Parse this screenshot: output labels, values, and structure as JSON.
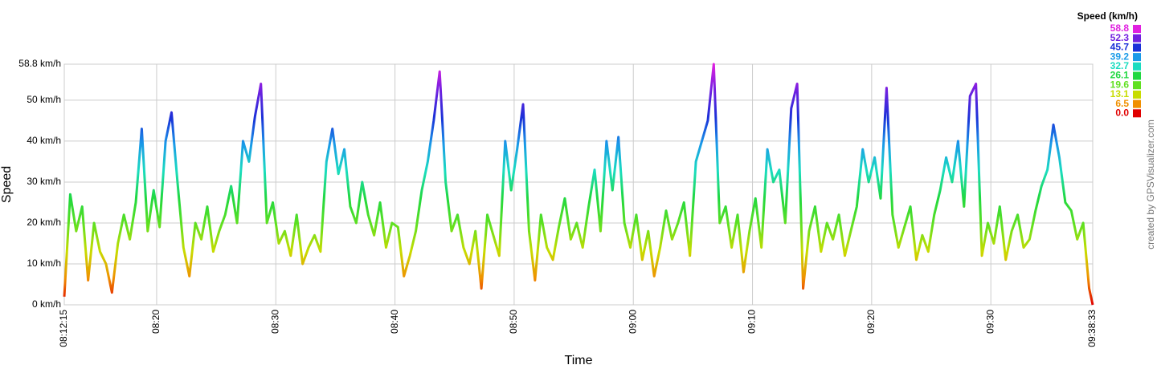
{
  "chart_data": {
    "type": "line",
    "x_label": "Time",
    "y_label": "Speed",
    "credit": "created by GPSVisualizer.com",
    "xlim": [
      "08:12:15",
      "09:38:33"
    ],
    "xticks": [
      "08:12:15",
      "08:20",
      "08:30",
      "08:40",
      "08:50",
      "09:00",
      "09:10",
      "09:20",
      "09:30",
      "09:38:33"
    ],
    "ylim": [
      0,
      58.8
    ],
    "yticks": [
      {
        "value": 0,
        "label": "0 km/h"
      },
      {
        "value": 10,
        "label": "10 km/h"
      },
      {
        "value": 20,
        "label": "20 km/h"
      },
      {
        "value": 30,
        "label": "30 km/h"
      },
      {
        "value": 40,
        "label": "40 km/h"
      },
      {
        "value": 50,
        "label": "50 km/h"
      },
      {
        "value": 58.8,
        "label": "58.8 km/h"
      }
    ],
    "grid": true,
    "color_scale": {
      "title": "Speed (km/h)",
      "stops": [
        {
          "value": 58.8,
          "color": "#e020e0"
        },
        {
          "value": 52.3,
          "color": "#7020e0"
        },
        {
          "value": 45.7,
          "color": "#1a30d8"
        },
        {
          "value": 39.2,
          "color": "#1a9ae8"
        },
        {
          "value": 32.7,
          "color": "#1adcc0"
        },
        {
          "value": 26.1,
          "color": "#20d840"
        },
        {
          "value": 19.6,
          "color": "#60e020"
        },
        {
          "value": 13.1,
          "color": "#c8dc00"
        },
        {
          "value": 6.5,
          "color": "#f09000"
        },
        {
          "value": 0,
          "label": "0.0",
          "color": "#e00000"
        }
      ]
    },
    "x": [
      "08:12:15",
      "08:12:45",
      "08:13:15",
      "08:13:45",
      "08:14:15",
      "08:14:45",
      "08:15:15",
      "08:15:45",
      "08:16:15",
      "08:16:45",
      "08:17:15",
      "08:17:45",
      "08:18:15",
      "08:18:45",
      "08:19:15",
      "08:19:45",
      "08:20:15",
      "08:20:45",
      "08:21:15",
      "08:21:45",
      "08:22:15",
      "08:22:45",
      "08:23:15",
      "08:23:45",
      "08:24:15",
      "08:24:45",
      "08:25:15",
      "08:25:45",
      "08:26:15",
      "08:26:45",
      "08:27:15",
      "08:27:45",
      "08:28:15",
      "08:28:45",
      "08:29:15",
      "08:29:45",
      "08:30:15",
      "08:30:45",
      "08:31:15",
      "08:31:45",
      "08:32:15",
      "08:32:45",
      "08:33:15",
      "08:33:45",
      "08:34:15",
      "08:34:45",
      "08:35:15",
      "08:35:45",
      "08:36:15",
      "08:36:45",
      "08:37:15",
      "08:37:45",
      "08:38:15",
      "08:38:45",
      "08:39:15",
      "08:39:45",
      "08:40:15",
      "08:40:45",
      "08:41:15",
      "08:41:45",
      "08:42:15",
      "08:42:45",
      "08:43:15",
      "08:43:45",
      "08:44:15",
      "08:44:45",
      "08:45:15",
      "08:45:45",
      "08:46:15",
      "08:46:45",
      "08:47:15",
      "08:47:45",
      "08:48:15",
      "08:48:45",
      "08:49:15",
      "08:49:45",
      "08:50:15",
      "08:50:45",
      "08:51:15",
      "08:51:45",
      "08:52:15",
      "08:52:45",
      "08:53:15",
      "08:53:45",
      "08:54:15",
      "08:54:45",
      "08:55:15",
      "08:55:45",
      "08:56:15",
      "08:56:45",
      "08:57:15",
      "08:57:45",
      "08:58:15",
      "08:58:45",
      "08:59:15",
      "08:59:45",
      "09:00:15",
      "09:00:45",
      "09:01:15",
      "09:01:45",
      "09:02:15",
      "09:02:45",
      "09:03:15",
      "09:03:45",
      "09:04:15",
      "09:04:45",
      "09:05:15",
      "09:05:45",
      "09:06:15",
      "09:06:45",
      "09:07:15",
      "09:07:45",
      "09:08:15",
      "09:08:45",
      "09:09:15",
      "09:09:45",
      "09:10:15",
      "09:10:45",
      "09:11:15",
      "09:11:45",
      "09:12:15",
      "09:12:45",
      "09:13:15",
      "09:13:45",
      "09:14:15",
      "09:14:45",
      "09:15:15",
      "09:15:45",
      "09:16:15",
      "09:16:45",
      "09:17:15",
      "09:17:45",
      "09:18:15",
      "09:18:45",
      "09:19:15",
      "09:19:45",
      "09:20:15",
      "09:20:45",
      "09:21:15",
      "09:21:45",
      "09:22:15",
      "09:22:45",
      "09:23:15",
      "09:23:45",
      "09:24:15",
      "09:24:45",
      "09:25:15",
      "09:25:45",
      "09:26:15",
      "09:26:45",
      "09:27:15",
      "09:27:45",
      "09:28:15",
      "09:28:45",
      "09:29:15",
      "09:29:45",
      "09:30:15",
      "09:30:45",
      "09:31:15",
      "09:31:45",
      "09:32:15",
      "09:32:45",
      "09:33:15",
      "09:33:45",
      "09:34:15",
      "09:34:45",
      "09:35:15",
      "09:35:45",
      "09:36:15",
      "09:36:45",
      "09:37:15",
      "09:37:45",
      "09:38:15",
      "09:38:33"
    ],
    "values": [
      2,
      27,
      18,
      24,
      6,
      20,
      13,
      10,
      3,
      15,
      22,
      16,
      25,
      43,
      18,
      28,
      19,
      40,
      47,
      30,
      14,
      7,
      20,
      16,
      24,
      13,
      18,
      22,
      29,
      20,
      40,
      35,
      46,
      54,
      20,
      25,
      15,
      18,
      12,
      22,
      10,
      14,
      17,
      13,
      35,
      43,
      32,
      38,
      24,
      20,
      30,
      22,
      17,
      25,
      14,
      20,
      19,
      7,
      12,
      18,
      28,
      35,
      45,
      57,
      30,
      18,
      22,
      14,
      10,
      18,
      4,
      22,
      17,
      12,
      40,
      28,
      38,
      49,
      18,
      6,
      22,
      14,
      11,
      19,
      26,
      16,
      20,
      14,
      24,
      33,
      18,
      40,
      28,
      41,
      20,
      14,
      22,
      11,
      18,
      7,
      14,
      23,
      16,
      20,
      25,
      12,
      35,
      40,
      45,
      58.8,
      20,
      24,
      14,
      22,
      8,
      18,
      26,
      14,
      38,
      30,
      33,
      20,
      48,
      54,
      4,
      18,
      24,
      13,
      20,
      16,
      22,
      12,
      18,
      24,
      38,
      30,
      36,
      26,
      53,
      22,
      14,
      19,
      24,
      11,
      17,
      13,
      22,
      28,
      36,
      30,
      40,
      24,
      51,
      54,
      12,
      20,
      15,
      24,
      11,
      18,
      22,
      14,
      16,
      23,
      29,
      33,
      44,
      36,
      25,
      23,
      16,
      20,
      4,
      0
    ]
  }
}
